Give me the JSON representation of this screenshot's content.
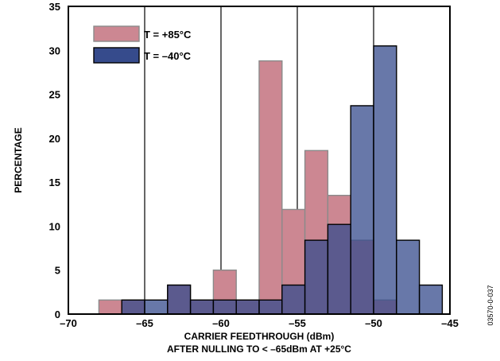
{
  "figure_code": "03570-0-037",
  "chart_data": {
    "type": "bar",
    "title": "",
    "xlabel": "CARRIER FEEDTHROUGH (dBm)",
    "xlabel_line2": "AFTER NULLING TO < –65dBm AT +25°C",
    "ylabel": "PERCENTAGE",
    "xlim": [
      -70,
      -45
    ],
    "ylim": [
      0,
      35
    ],
    "xticks": [
      -70,
      -65,
      -60,
      -55,
      -50,
      -45
    ],
    "xtick_labels": [
      "–70",
      "–65",
      "–60",
      "–55",
      "–50",
      "–45"
    ],
    "yticks": [
      0,
      5,
      10,
      15,
      20,
      25,
      30,
      35
    ],
    "ytick_labels": [
      "0",
      "5",
      "10",
      "15",
      "20",
      "25",
      "30",
      "35"
    ],
    "grid": "vertical lines at x ticks",
    "legend_position": "top-left",
    "bin_width": 1.5,
    "series": [
      {
        "name": "T = +85°C",
        "color": "#cc8792",
        "bins": [
          {
            "x": -67.25,
            "value": 1.6
          },
          {
            "x": -65.75,
            "value": 1.6
          },
          {
            "x": -62.75,
            "value": 3.3
          },
          {
            "x": -61.25,
            "value": 1.6
          },
          {
            "x": -59.75,
            "value": 5.0
          },
          {
            "x": -58.25,
            "value": 1.6
          },
          {
            "x": -56.75,
            "value": 1.6
          },
          {
            "x": -55.25,
            "value": 11.9
          },
          {
            "x": -56.75,
            "value": 28.8
          },
          {
            "x": -53.75,
            "value": 18.6
          },
          {
            "x": -52.25,
            "value": 13.5
          },
          {
            "x": -50.75,
            "value": 8.4
          },
          {
            "x": -49.25,
            "value": 1.6
          }
        ]
      },
      {
        "name": "T = –40°C",
        "color": "#364b8c",
        "bins": [
          {
            "x": -65.75,
            "value": 1.6
          },
          {
            "x": -64.25,
            "value": 1.6
          },
          {
            "x": -62.75,
            "value": 3.3
          },
          {
            "x": -61.25,
            "value": 1.6
          },
          {
            "x": -59.75,
            "value": 1.6
          },
          {
            "x": -58.25,
            "value": 1.6
          },
          {
            "x": -56.75,
            "value": 1.6
          },
          {
            "x": -55.25,
            "value": 3.3
          },
          {
            "x": -53.75,
            "value": 8.4
          },
          {
            "x": -52.25,
            "value": 10.2
          },
          {
            "x": -50.75,
            "value": 23.7
          },
          {
            "x": -49.25,
            "value": 30.5
          },
          {
            "x": -47.75,
            "value": 8.4
          },
          {
            "x": -46.25,
            "value": 3.3
          }
        ]
      }
    ]
  }
}
